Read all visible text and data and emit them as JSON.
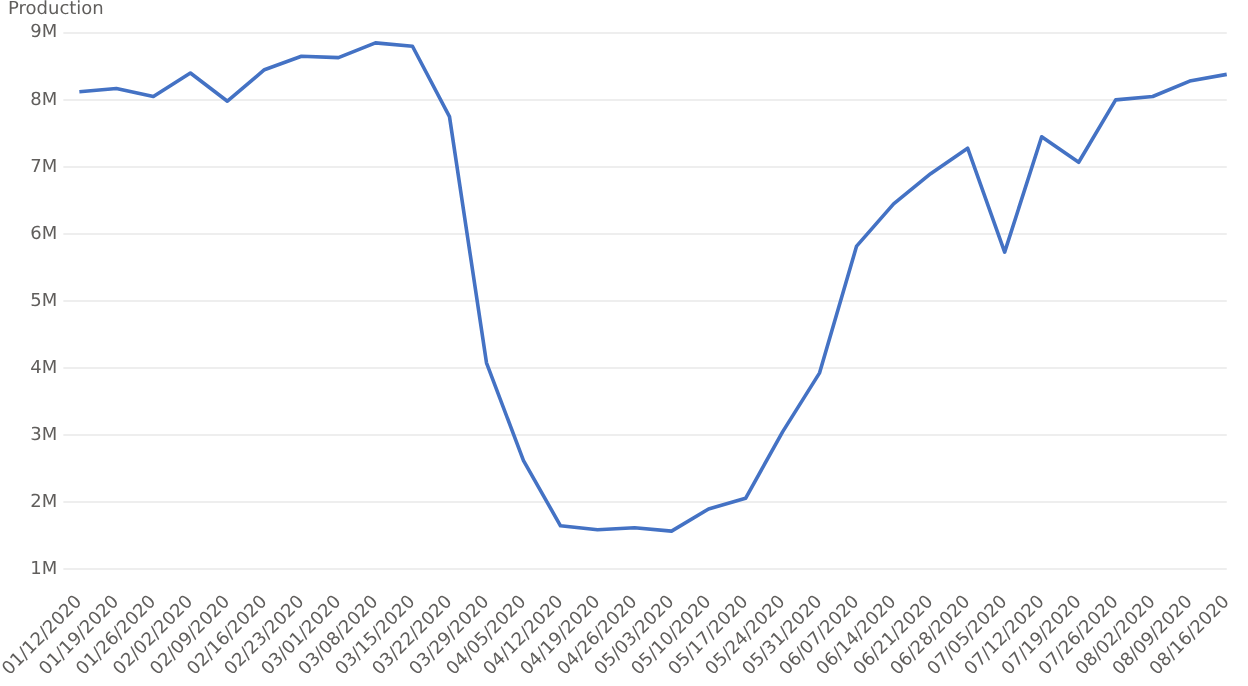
{
  "chart_data": {
    "type": "line",
    "ylabel": "Production",
    "categories": [
      "01/12/2020",
      "01/19/2020",
      "01/26/2020",
      "02/02/2020",
      "02/09/2020",
      "02/16/2020",
      "02/23/2020",
      "03/01/2020",
      "03/08/2020",
      "03/15/2020",
      "03/22/2020",
      "03/29/2020",
      "04/05/2020",
      "04/12/2020",
      "04/19/2020",
      "04/26/2020",
      "05/03/2020",
      "05/10/2020",
      "05/17/2020",
      "05/24/2020",
      "05/31/2020",
      "06/07/2020",
      "06/14/2020",
      "06/21/2020",
      "06/28/2020",
      "07/05/2020",
      "07/12/2020",
      "07/19/2020",
      "07/26/2020",
      "08/02/2020",
      "08/09/2020",
      "08/16/2020"
    ],
    "series": [
      {
        "color": "#4472c4",
        "values": [
          8120000,
          8170000,
          8050000,
          8400000,
          7980000,
          8450000,
          8650000,
          8630000,
          8850000,
          8800000,
          7750000,
          4080000,
          2620000,
          1650000,
          1590000,
          1620000,
          1570000,
          1900000,
          2060000,
          3050000,
          3930000,
          5820000,
          6450000,
          6900000,
          7280000,
          5730000,
          7450000,
          7070000,
          8000000,
          8050000,
          8280000,
          8380000
        ]
      }
    ],
    "ylim": [
      1000000,
      9000000
    ],
    "yticks": [
      {
        "value": 1000000,
        "label": "1M"
      },
      {
        "value": 2000000,
        "label": "2M"
      },
      {
        "value": 3000000,
        "label": "3M"
      },
      {
        "value": 4000000,
        "label": "4M"
      },
      {
        "value": 5000000,
        "label": "5M"
      },
      {
        "value": 6000000,
        "label": "6M"
      },
      {
        "value": 7000000,
        "label": "7M"
      },
      {
        "value": 8000000,
        "label": "8M"
      },
      {
        "value": 9000000,
        "label": "9M"
      }
    ],
    "grid": "y",
    "legend": false,
    "marker": "none",
    "line_style": "solid"
  }
}
